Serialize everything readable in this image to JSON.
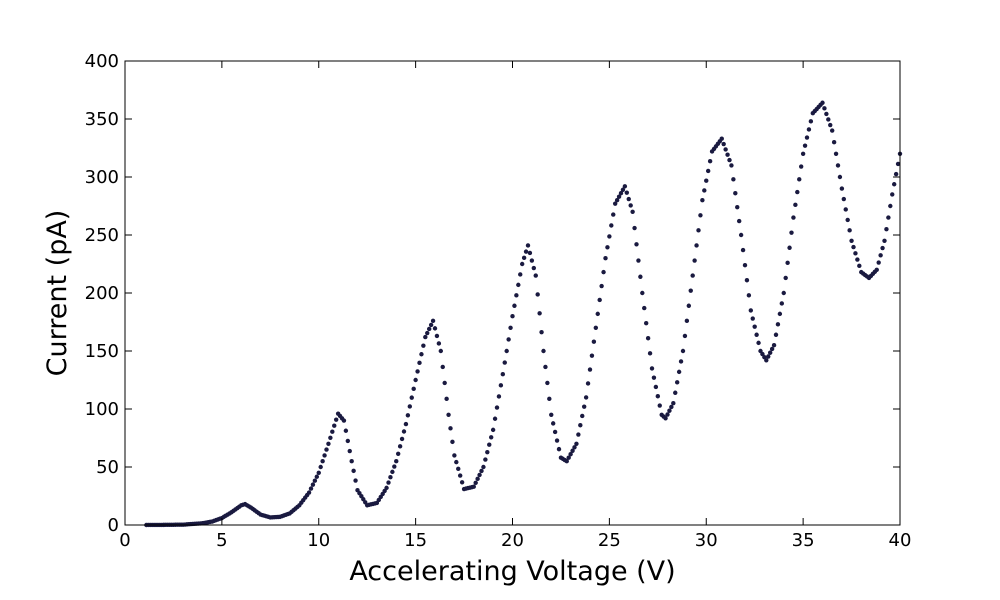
{
  "chart_data": {
    "type": "scatter",
    "title": "",
    "xlabel": "Accelerating Voltage (V)",
    "ylabel": "Current (pA)",
    "xlim": [
      0,
      40
    ],
    "ylim": [
      0,
      400
    ],
    "x_ticks": [
      "0",
      "5",
      "10",
      "15",
      "20",
      "25",
      "30",
      "35",
      "40"
    ],
    "y_ticks": [
      "0",
      "50",
      "100",
      "150",
      "200",
      "250",
      "300",
      "350",
      "400"
    ],
    "grid": false,
    "legend": "none",
    "marker_color": "#1a1a40",
    "series": [
      {
        "points": [
          [
            1.1,
            0
          ],
          [
            2.0,
            0.1
          ],
          [
            3.0,
            0.3
          ],
          [
            4.0,
            1.5
          ],
          [
            4.5,
            3
          ],
          [
            5.0,
            6
          ],
          [
            5.5,
            11
          ],
          [
            6.0,
            17
          ],
          [
            6.2,
            18
          ],
          [
            6.5,
            15
          ],
          [
            7.0,
            9
          ],
          [
            7.5,
            6.5
          ],
          [
            8.0,
            7
          ],
          [
            8.5,
            10
          ],
          [
            9.0,
            17
          ],
          [
            9.5,
            28
          ],
          [
            10.0,
            45
          ],
          [
            10.5,
            70
          ],
          [
            11.0,
            96
          ],
          [
            11.3,
            90
          ],
          [
            11.7,
            55
          ],
          [
            12.0,
            30
          ],
          [
            12.5,
            17
          ],
          [
            13.0,
            19
          ],
          [
            13.5,
            32
          ],
          [
            14.0,
            55
          ],
          [
            14.5,
            87
          ],
          [
            15.0,
            125
          ],
          [
            15.5,
            162
          ],
          [
            15.9,
            176
          ],
          [
            16.3,
            150
          ],
          [
            16.7,
            95
          ],
          [
            17.0,
            60
          ],
          [
            17.5,
            31
          ],
          [
            18.0,
            33
          ],
          [
            18.5,
            50
          ],
          [
            19.0,
            82
          ],
          [
            19.5,
            130
          ],
          [
            20.0,
            180
          ],
          [
            20.5,
            225
          ],
          [
            20.8,
            241
          ],
          [
            21.2,
            215
          ],
          [
            21.6,
            150
          ],
          [
            22.0,
            95
          ],
          [
            22.5,
            58
          ],
          [
            22.8,
            55
          ],
          [
            23.3,
            70
          ],
          [
            23.8,
            110
          ],
          [
            24.3,
            170
          ],
          [
            24.8,
            230
          ],
          [
            25.3,
            277
          ],
          [
            25.8,
            292
          ],
          [
            26.2,
            270
          ],
          [
            26.7,
            200
          ],
          [
            27.2,
            135
          ],
          [
            27.7,
            95
          ],
          [
            27.9,
            92
          ],
          [
            28.3,
            105
          ],
          [
            28.8,
            150
          ],
          [
            29.3,
            215
          ],
          [
            29.8,
            280
          ],
          [
            30.3,
            322
          ],
          [
            30.8,
            333
          ],
          [
            31.3,
            310
          ],
          [
            31.8,
            250
          ],
          [
            32.3,
            185
          ],
          [
            32.8,
            150
          ],
          [
            33.1,
            142
          ],
          [
            33.5,
            155
          ],
          [
            34.0,
            200
          ],
          [
            34.5,
            265
          ],
          [
            35.0,
            320
          ],
          [
            35.5,
            355
          ],
          [
            36.0,
            364
          ],
          [
            36.5,
            340
          ],
          [
            37.0,
            290
          ],
          [
            37.5,
            245
          ],
          [
            38.0,
            218
          ],
          [
            38.4,
            213
          ],
          [
            38.8,
            220
          ],
          [
            39.2,
            245
          ],
          [
            39.6,
            285
          ],
          [
            40.0,
            320
          ]
        ]
      }
    ]
  }
}
